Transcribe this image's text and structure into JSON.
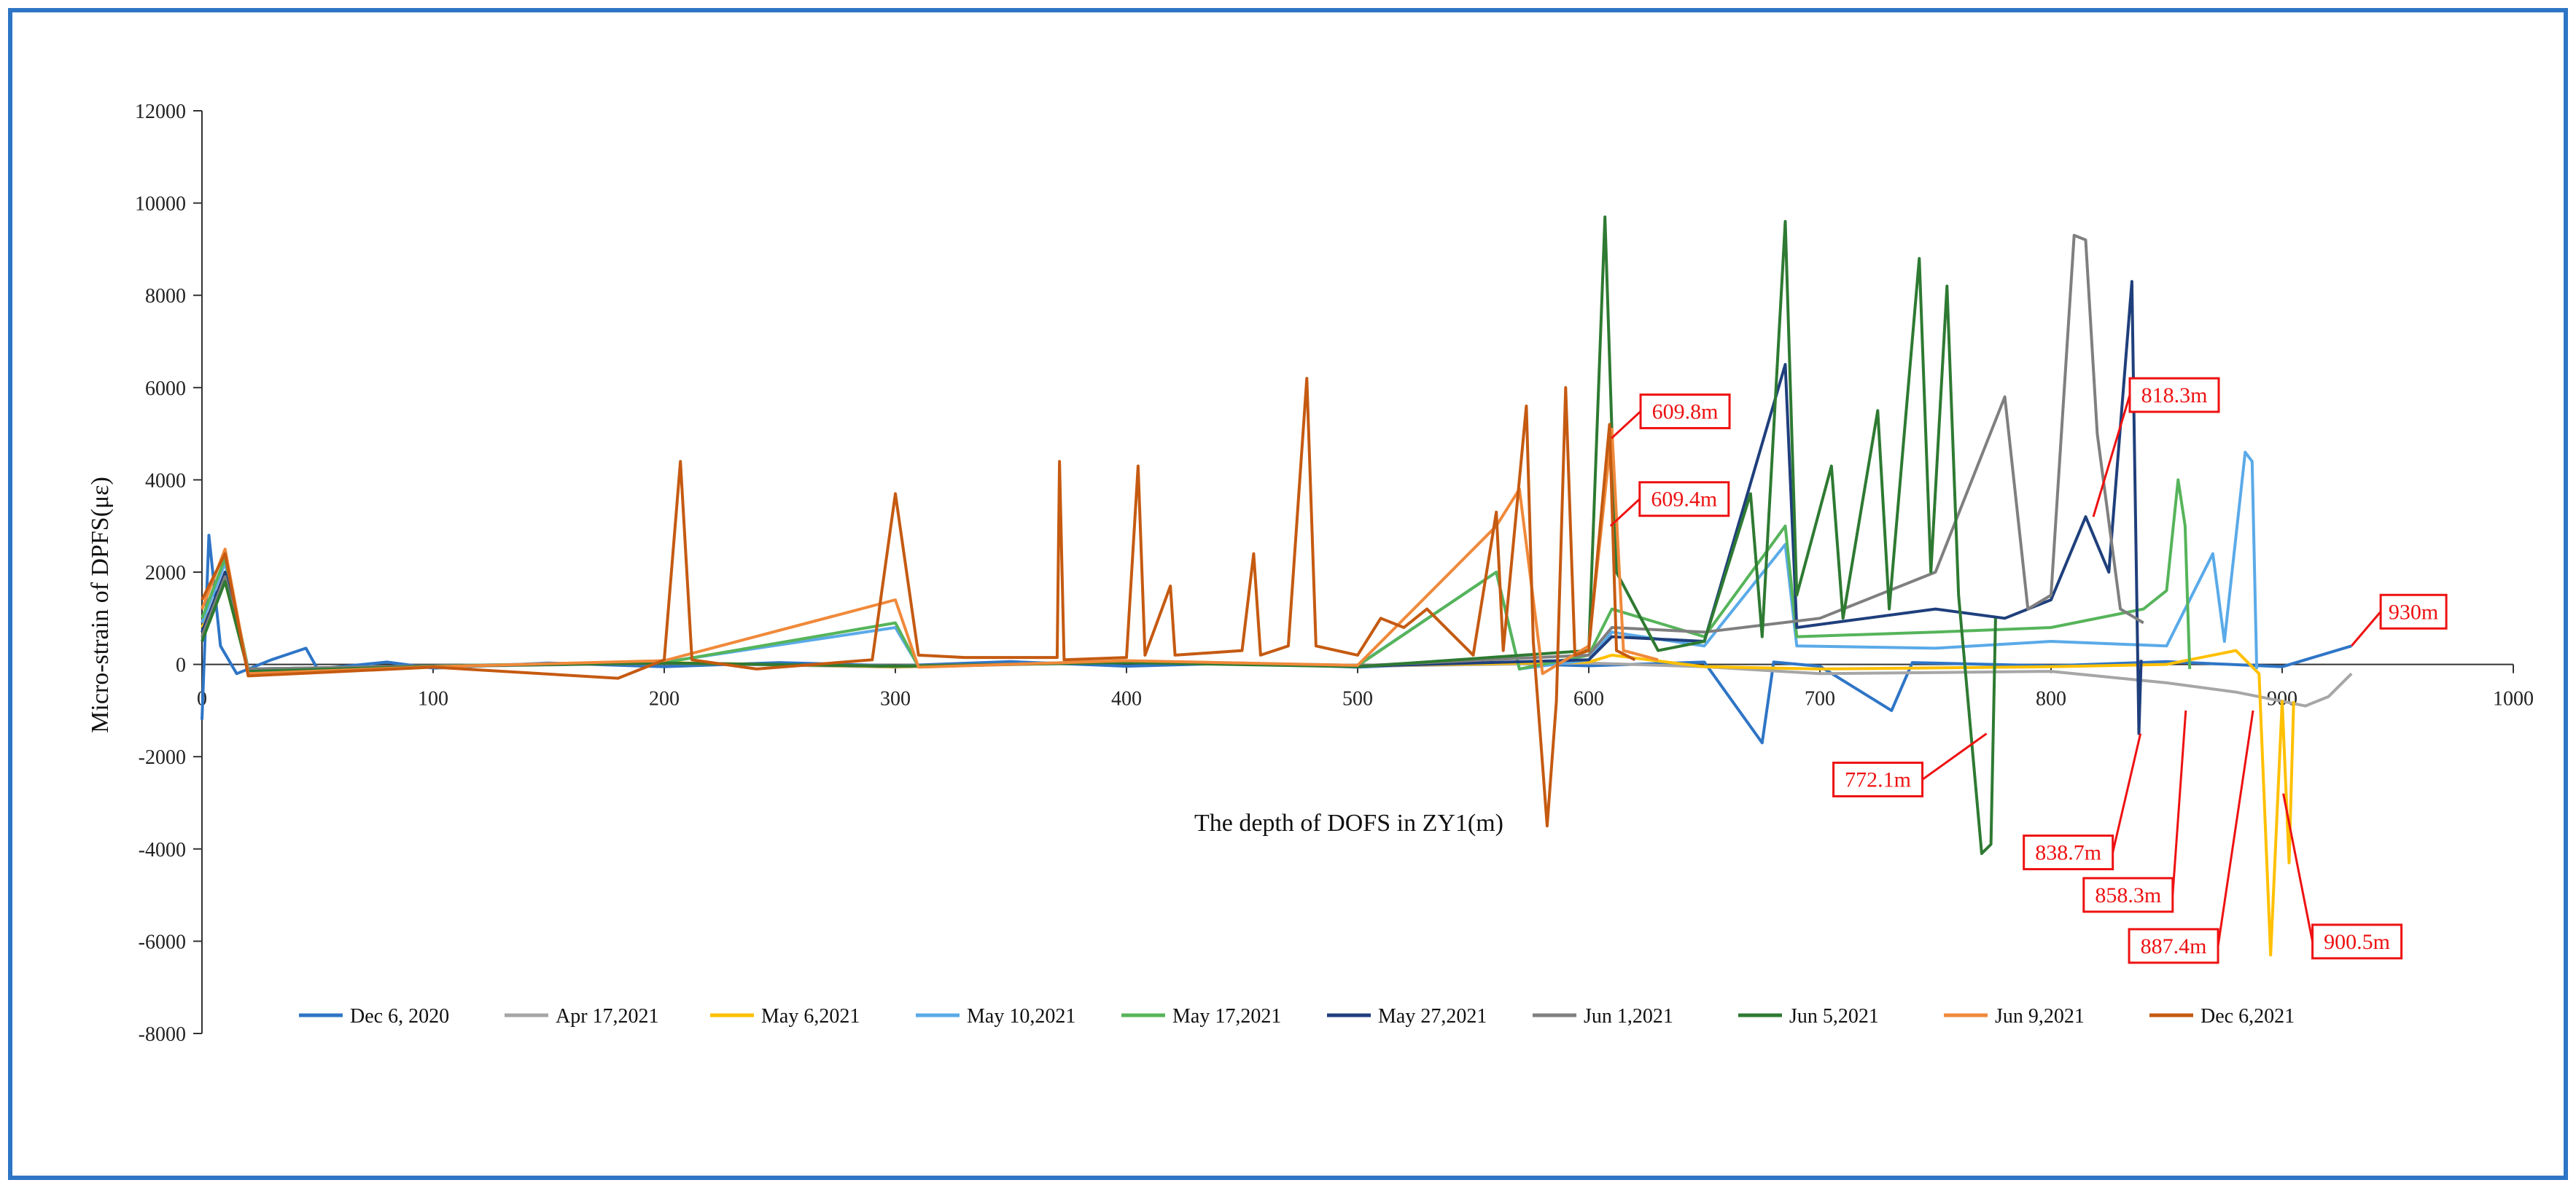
{
  "chart_data": {
    "type": "line",
    "title": "",
    "xlabel": "The depth of DOFS in ZY1(m)",
    "ylabel": "Micro-strain of DPFS(με)",
    "xlim": [
      0,
      1000
    ],
    "ylim": [
      -8000,
      12000
    ],
    "x_ticks": [
      "0",
      "100",
      "200",
      "300",
      "400",
      "500",
      "600",
      "700",
      "800",
      "900",
      "1000"
    ],
    "y_ticks": [
      "12000",
      "10000",
      "8000",
      "6000",
      "4000",
      "2000",
      "0",
      "-2000",
      "-4000",
      "-6000",
      "-8000"
    ],
    "grid": false,
    "legend_position": "bottom",
    "series": [
      {
        "name": "Dec 6, 2020",
        "color": "#2e75c6",
        "points": [
          [
            0,
            -1200
          ],
          [
            3,
            2800
          ],
          [
            8,
            400
          ],
          [
            15,
            -200
          ],
          [
            30,
            100
          ],
          [
            45,
            350
          ],
          [
            50,
            -100
          ],
          [
            80,
            50
          ],
          [
            100,
            -80
          ],
          [
            150,
            30
          ],
          [
            200,
            -50
          ],
          [
            250,
            40
          ],
          [
            300,
            -30
          ],
          [
            350,
            60
          ],
          [
            400,
            -40
          ],
          [
            450,
            30
          ],
          [
            500,
            -60
          ],
          [
            550,
            40
          ],
          [
            600,
            -30
          ],
          [
            650,
            50
          ],
          [
            675,
            -1700
          ],
          [
            680,
            50
          ],
          [
            700,
            -40
          ],
          [
            731,
            -1000
          ],
          [
            740,
            40
          ],
          [
            800,
            -30
          ],
          [
            850,
            60
          ],
          [
            900,
            -50
          ],
          [
            930,
            400
          ]
        ]
      },
      {
        "name": "Apr 17,2021",
        "color": "#a6a6a6",
        "points": [
          [
            0,
            500
          ],
          [
            10,
            2000
          ],
          [
            20,
            -200
          ],
          [
            100,
            -50
          ],
          [
            200,
            30
          ],
          [
            300,
            -60
          ],
          [
            400,
            50
          ],
          [
            500,
            -40
          ],
          [
            600,
            30
          ],
          [
            650,
            -50
          ],
          [
            700,
            -200
          ],
          [
            800,
            -150
          ],
          [
            850,
            -400
          ],
          [
            880,
            -600
          ],
          [
            900,
            -800
          ],
          [
            910,
            -900
          ],
          [
            920,
            -700
          ],
          [
            930,
            -200
          ]
        ]
      },
      {
        "name": "May 6,2021",
        "color": "#ffc000",
        "points": [
          [
            0,
            800
          ],
          [
            10,
            1800
          ],
          [
            20,
            -150
          ],
          [
            100,
            -40
          ],
          [
            200,
            40
          ],
          [
            300,
            -50
          ],
          [
            400,
            60
          ],
          [
            500,
            -30
          ],
          [
            600,
            50
          ],
          [
            610,
            200
          ],
          [
            650,
            -50
          ],
          [
            700,
            -100
          ],
          [
            800,
            -50
          ],
          [
            850,
            0
          ],
          [
            880,
            300
          ],
          [
            890,
            -200
          ],
          [
            895,
            -6300
          ],
          [
            900,
            -800
          ],
          [
            903,
            -4300
          ],
          [
            905,
            -800
          ]
        ]
      },
      {
        "name": "May 10,2021",
        "color": "#5aaae8",
        "points": [
          [
            0,
            900
          ],
          [
            10,
            2200
          ],
          [
            20,
            -100
          ],
          [
            100,
            -30
          ],
          [
            200,
            50
          ],
          [
            300,
            800
          ],
          [
            310,
            -40
          ],
          [
            400,
            70
          ],
          [
            500,
            -20
          ],
          [
            560,
            2000
          ],
          [
            570,
            -100
          ],
          [
            600,
            100
          ],
          [
            610,
            700
          ],
          [
            650,
            400
          ],
          [
            685,
            2600
          ],
          [
            690,
            400
          ],
          [
            750,
            350
          ],
          [
            800,
            500
          ],
          [
            850,
            400
          ],
          [
            870,
            2400
          ],
          [
            875,
            500
          ],
          [
            884,
            4600
          ],
          [
            887,
            4400
          ],
          [
            889,
            -100
          ]
        ]
      },
      {
        "name": "May 17,2021",
        "color": "#56b45a",
        "points": [
          [
            0,
            1000
          ],
          [
            10,
            2300
          ],
          [
            20,
            -100
          ],
          [
            100,
            -30
          ],
          [
            200,
            40
          ],
          [
            300,
            900
          ],
          [
            310,
            -50
          ],
          [
            400,
            60
          ],
          [
            500,
            -30
          ],
          [
            560,
            2000
          ],
          [
            570,
            -100
          ],
          [
            600,
            200
          ],
          [
            610,
            1200
          ],
          [
            650,
            600
          ],
          [
            685,
            3000
          ],
          [
            690,
            600
          ],
          [
            750,
            700
          ],
          [
            800,
            800
          ],
          [
            840,
            1200
          ],
          [
            850,
            1600
          ],
          [
            855,
            4000
          ],
          [
            858,
            3000
          ],
          [
            860,
            -100
          ]
        ]
      },
      {
        "name": "May 27,2021",
        "color": "#1f3f7c",
        "points": [
          [
            0,
            700
          ],
          [
            10,
            2000
          ],
          [
            20,
            -120
          ],
          [
            100,
            -40
          ],
          [
            200,
            30
          ],
          [
            300,
            -40
          ],
          [
            400,
            50
          ],
          [
            500,
            -40
          ],
          [
            600,
            100
          ],
          [
            610,
            600
          ],
          [
            650,
            500
          ],
          [
            685,
            6500
          ],
          [
            690,
            800
          ],
          [
            720,
            1000
          ],
          [
            750,
            1200
          ],
          [
            780,
            1000
          ],
          [
            800,
            1400
          ],
          [
            815,
            3200
          ],
          [
            825,
            2000
          ],
          [
            835,
            8300
          ],
          [
            838,
            -1500
          ],
          [
            839,
            100
          ]
        ]
      },
      {
        "name": "Jun 1,2021",
        "color": "#7f7f7f",
        "points": [
          [
            0,
            600
          ],
          [
            10,
            1900
          ],
          [
            20,
            -100
          ],
          [
            100,
            -30
          ],
          [
            200,
            20
          ],
          [
            300,
            -30
          ],
          [
            400,
            40
          ],
          [
            500,
            -30
          ],
          [
            600,
            200
          ],
          [
            610,
            800
          ],
          [
            650,
            700
          ],
          [
            700,
            1000
          ],
          [
            750,
            2000
          ],
          [
            780,
            5800
          ],
          [
            790,
            1200
          ],
          [
            800,
            1500
          ],
          [
            810,
            9300
          ],
          [
            815,
            9200
          ],
          [
            820,
            5000
          ],
          [
            830,
            1200
          ],
          [
            840,
            900
          ]
        ]
      },
      {
        "name": "Jun 5,2021",
        "color": "#2e7a32",
        "points": [
          [
            0,
            500
          ],
          [
            10,
            1800
          ],
          [
            20,
            -150
          ],
          [
            100,
            -40
          ],
          [
            200,
            30
          ],
          [
            300,
            -40
          ],
          [
            400,
            40
          ],
          [
            500,
            -50
          ],
          [
            600,
            300
          ],
          [
            607,
            9700
          ],
          [
            612,
            2000
          ],
          [
            630,
            300
          ],
          [
            650,
            500
          ],
          [
            670,
            3700
          ],
          [
            675,
            600
          ],
          [
            685,
            9600
          ],
          [
            690,
            1500
          ],
          [
            705,
            4300
          ],
          [
            710,
            1000
          ],
          [
            725,
            5500
          ],
          [
            730,
            1200
          ],
          [
            743,
            8800
          ],
          [
            748,
            2000
          ],
          [
            755,
            8200
          ],
          [
            760,
            1500
          ],
          [
            770,
            -4100
          ],
          [
            774,
            -3900
          ],
          [
            776,
            1000
          ]
        ]
      },
      {
        "name": "Jun 9,2021",
        "color": "#f0893a",
        "points": [
          [
            0,
            1200
          ],
          [
            10,
            2500
          ],
          [
            20,
            -200
          ],
          [
            100,
            -50
          ],
          [
            200,
            80
          ],
          [
            300,
            1400
          ],
          [
            310,
            -60
          ],
          [
            400,
            80
          ],
          [
            500,
            -20
          ],
          [
            560,
            3000
          ],
          [
            570,
            3800
          ],
          [
            580,
            -200
          ],
          [
            600,
            400
          ],
          [
            610,
            5100
          ],
          [
            615,
            300
          ],
          [
            630,
            100
          ]
        ]
      },
      {
        "name": "Dec 6,2021",
        "color": "#c55a11",
        "points": [
          [
            0,
            1400
          ],
          [
            10,
            2400
          ],
          [
            20,
            -250
          ],
          [
            100,
            -60
          ],
          [
            180,
            -300
          ],
          [
            200,
            100
          ],
          [
            207,
            4400
          ],
          [
            212,
            100
          ],
          [
            240,
            -100
          ],
          [
            290,
            100
          ],
          [
            300,
            3700
          ],
          [
            310,
            200
          ],
          [
            330,
            150
          ],
          [
            370,
            150
          ],
          [
            371,
            4400
          ],
          [
            373,
            100
          ],
          [
            400,
            150
          ],
          [
            405,
            4300
          ],
          [
            408,
            200
          ],
          [
            419,
            1700
          ],
          [
            421,
            200
          ],
          [
            450,
            300
          ],
          [
            455,
            2400
          ],
          [
            458,
            200
          ],
          [
            470,
            400
          ],
          [
            478,
            6200
          ],
          [
            482,
            400
          ],
          [
            500,
            200
          ],
          [
            510,
            1000
          ],
          [
            520,
            800
          ],
          [
            530,
            1200
          ],
          [
            540,
            700
          ],
          [
            550,
            200
          ],
          [
            560,
            3300
          ],
          [
            563,
            300
          ],
          [
            573,
            5600
          ],
          [
            576,
            500
          ],
          [
            582,
            -3500
          ],
          [
            586,
            -800
          ],
          [
            590,
            6000
          ],
          [
            594,
            200
          ],
          [
            600,
            300
          ],
          [
            609,
            5200
          ],
          [
            612,
            300
          ],
          [
            620,
            100
          ]
        ]
      }
    ],
    "annotations": [
      {
        "label": "609.8m",
        "x": 609.8,
        "y": 4900
      },
      {
        "label": "609.4m",
        "x": 609.4,
        "y": 3000
      },
      {
        "label": "818.3m",
        "x": 818.3,
        "y": 3200
      },
      {
        "label": "930m",
        "x": 930,
        "y": 400
      },
      {
        "label": "772.1m",
        "x": 772.1,
        "y": -1500
      },
      {
        "label": "838.7m",
        "x": 838.7,
        "y": -1500
      },
      {
        "label": "858.3m",
        "x": 858.3,
        "y": -1000
      },
      {
        "label": "887.4m",
        "x": 887.4,
        "y": -1000
      },
      {
        "label": "900.5m",
        "x": 900.5,
        "y": -2800
      }
    ]
  }
}
